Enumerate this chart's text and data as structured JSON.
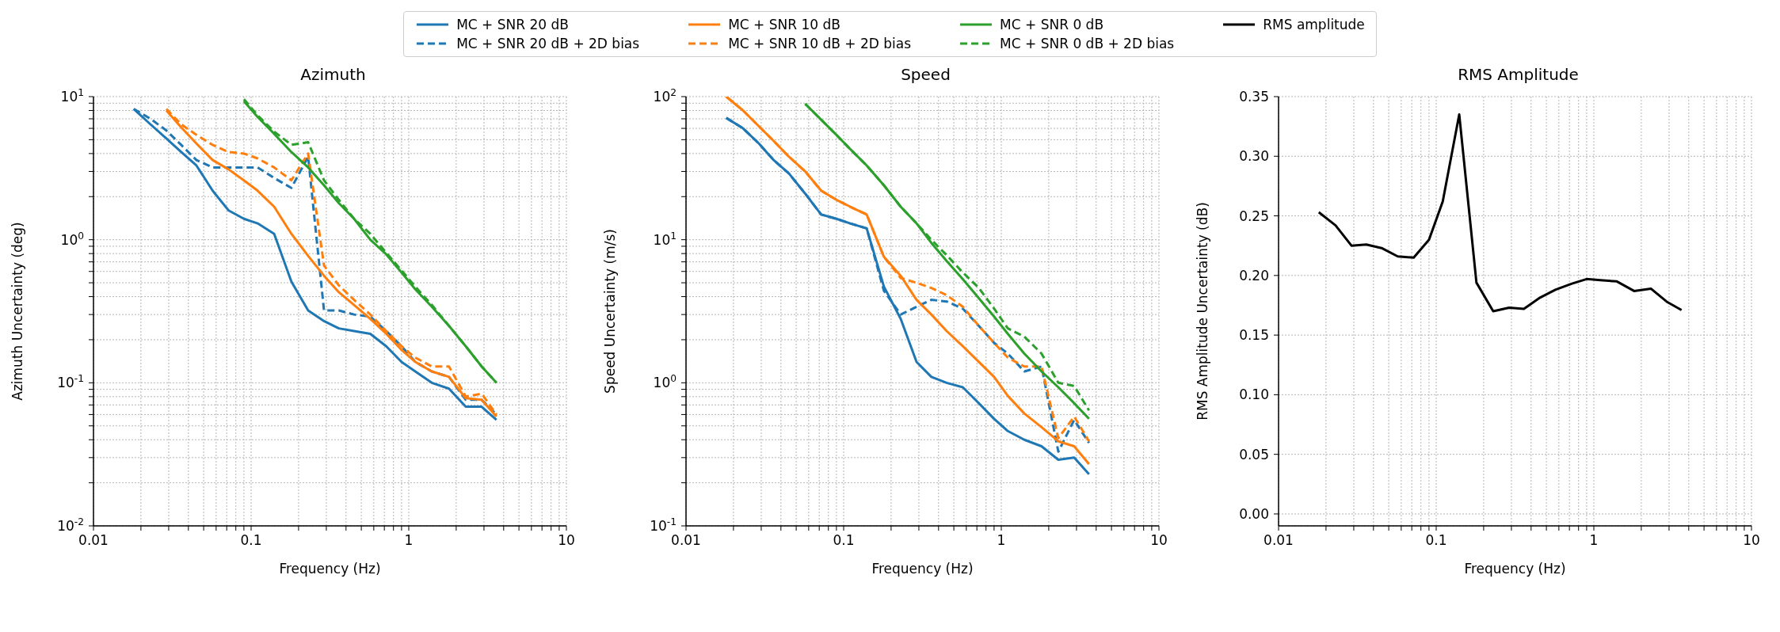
{
  "chart_data": [
    {
      "type": "line",
      "title": "Azimuth",
      "xlabel": "Frequency (Hz)",
      "ylabel": "Azimuth Uncertainty (deg)",
      "log": "xy",
      "grid": true,
      "legend": "top",
      "xlim": [
        0.01,
        10
      ],
      "ylim": [
        0.01,
        10
      ],
      "xticks": [
        0.01,
        {
          "value": 0.02,
          "label": null
        },
        {
          "value": 0.03,
          "label": null
        },
        {
          "value": 0.04,
          "label": null
        },
        {
          "value": 0.05,
          "label": null
        },
        {
          "value": 0.06,
          "label": null
        },
        {
          "value": 0.07,
          "label": null
        },
        {
          "value": 0.08,
          "label": null
        },
        {
          "value": 0.09,
          "label": null
        },
        0.1,
        {
          "value": 0.2,
          "label": null
        },
        {
          "value": 0.3,
          "label": null
        },
        {
          "value": 0.4,
          "label": null
        },
        {
          "value": 0.5,
          "label": null
        },
        {
          "value": 0.6,
          "label": null
        },
        {
          "value": 0.7,
          "label": null
        },
        {
          "value": 0.8,
          "label": null
        },
        {
          "value": 0.9,
          "label": null
        },
        1,
        {
          "value": 2,
          "label": null
        },
        {
          "value": 3,
          "label": null
        },
        {
          "value": 4,
          "label": null
        },
        {
          "value": 5,
          "label": null
        },
        {
          "value": 6,
          "label": null
        },
        {
          "value": 7,
          "label": null
        },
        {
          "value": 8,
          "label": null
        },
        {
          "value": 9,
          "label": null
        },
        10
      ],
      "yticks": [
        {
          "value": 0.01,
          "label": "10$^{-2}$"
        },
        {
          "value": 0.02,
          "label": null
        },
        {
          "value": 0.03,
          "label": null
        },
        {
          "value": 0.04,
          "label": null
        },
        {
          "value": 0.05,
          "label": null
        },
        {
          "value": 0.06,
          "label": null
        },
        {
          "value": 0.07,
          "label": null
        },
        {
          "value": 0.08,
          "label": null
        },
        {
          "value": 0.09,
          "label": null
        },
        {
          "value": 0.1,
          "label": "10$^{-1}$"
        },
        {
          "value": 0.2,
          "label": null
        },
        {
          "value": 0.3,
          "label": null
        },
        {
          "value": 0.4,
          "label": null
        },
        {
          "value": 0.5,
          "label": null
        },
        {
          "value": 0.6,
          "label": null
        },
        {
          "value": 0.7,
          "label": null
        },
        {
          "value": 0.8,
          "label": null
        },
        {
          "value": 0.9,
          "label": null
        },
        {
          "value": 1,
          "label": "10$^{0}$"
        },
        {
          "value": 2,
          "label": null
        },
        {
          "value": 3,
          "label": null
        },
        {
          "value": 4,
          "label": null
        },
        {
          "value": 5,
          "label": null
        },
        {
          "value": 6,
          "label": null
        },
        {
          "value": 7,
          "label": null
        },
        {
          "value": 8,
          "label": null
        },
        {
          "value": 9,
          "label": null
        },
        {
          "value": 10,
          "label": "10$^{1}$"
        }
      ],
      "x": [
        0.018,
        0.023,
        0.029,
        0.036,
        0.045,
        0.057,
        0.072,
        0.09,
        0.11,
        0.14,
        0.18,
        0.23,
        0.29,
        0.36,
        0.45,
        0.57,
        0.72,
        0.9,
        1.1,
        1.4,
        1.8,
        2.3,
        2.9,
        3.6
      ],
      "series": [
        {
          "name": "MC + SNR 20 dB",
          "color": "#1f77b4",
          "line_style": "solid",
          "values": [
            8.2,
            6.4,
            5.1,
            4.1,
            3.3,
            2.2,
            1.6,
            1.4,
            1.3,
            1.1,
            0.51,
            0.32,
            0.27,
            0.24,
            0.23,
            0.22,
            0.18,
            0.14,
            0.12,
            0.1,
            0.091,
            0.068,
            0.068,
            0.055
          ]
        },
        {
          "name": "MC + SNR 20 dB + 2D bias",
          "color": "#1f77b4",
          "line_style": "dashed",
          "values": [
            8.2,
            7.0,
            5.8,
            4.6,
            3.6,
            3.2,
            3.2,
            3.2,
            3.2,
            2.7,
            2.3,
            3.8,
            0.32,
            0.32,
            0.3,
            0.29,
            0.23,
            0.18,
            0.14,
            0.12,
            0.11,
            0.076,
            0.076,
            0.06
          ]
        },
        {
          "name": "MC + SNR 10 dB",
          "color": "#ff7f0e",
          "line_style": "solid",
          "values": [
            null,
            null,
            8.0,
            6.1,
            4.7,
            3.6,
            3.1,
            2.6,
            2.2,
            1.7,
            1.1,
            0.77,
            0.56,
            0.43,
            0.35,
            0.28,
            0.22,
            0.17,
            0.14,
            0.12,
            0.11,
            0.078,
            0.076,
            0.058
          ]
        },
        {
          "name": "MC + SNR 10 dB + 2D bias",
          "color": "#ff7f0e",
          "line_style": "dashed",
          "values": [
            null,
            null,
            8.2,
            6.4,
            5.4,
            4.6,
            4.1,
            4.0,
            3.7,
            3.2,
            2.6,
            4.0,
            0.66,
            0.48,
            0.38,
            0.3,
            0.23,
            0.18,
            0.15,
            0.13,
            0.13,
            0.08,
            0.084,
            0.06
          ]
        },
        {
          "name": "MC + SNR 0 dB",
          "color": "#2ca02c",
          "line_style": "solid",
          "values": [
            null,
            null,
            null,
            null,
            null,
            null,
            null,
            9.3,
            7.2,
            5.5,
            4.1,
            3.2,
            2.4,
            1.8,
            1.4,
            1.0,
            0.79,
            0.59,
            0.45,
            0.34,
            0.25,
            0.18,
            0.13,
            0.1
          ]
        },
        {
          "name": "MC + SNR 0 dB + 2D bias",
          "color": "#2ca02c",
          "line_style": "dashed",
          "values": [
            null,
            null,
            null,
            null,
            null,
            null,
            null,
            9.6,
            7.4,
            5.7,
            4.6,
            4.8,
            2.6,
            1.9,
            1.4,
            1.1,
            0.81,
            0.61,
            0.47,
            0.35,
            0.25,
            0.18,
            0.13,
            0.1
          ]
        }
      ]
    },
    {
      "type": "line",
      "title": "Speed",
      "xlabel": "Frequency (Hz)",
      "ylabel": "Speed Uncertainty (m/s)",
      "log": "xy",
      "grid": true,
      "xlim": [
        0.01,
        10
      ],
      "ylim": [
        0.1,
        100
      ],
      "xticks": [
        0.01,
        {
          "value": 0.02,
          "label": null
        },
        {
          "value": 0.03,
          "label": null
        },
        {
          "value": 0.04,
          "label": null
        },
        {
          "value": 0.05,
          "label": null
        },
        {
          "value": 0.06,
          "label": null
        },
        {
          "value": 0.07,
          "label": null
        },
        {
          "value": 0.08,
          "label": null
        },
        {
          "value": 0.09,
          "label": null
        },
        0.1,
        {
          "value": 0.2,
          "label": null
        },
        {
          "value": 0.3,
          "label": null
        },
        {
          "value": 0.4,
          "label": null
        },
        {
          "value": 0.5,
          "label": null
        },
        {
          "value": 0.6,
          "label": null
        },
        {
          "value": 0.7,
          "label": null
        },
        {
          "value": 0.8,
          "label": null
        },
        {
          "value": 0.9,
          "label": null
        },
        1,
        {
          "value": 2,
          "label": null
        },
        {
          "value": 3,
          "label": null
        },
        {
          "value": 4,
          "label": null
        },
        {
          "value": 5,
          "label": null
        },
        {
          "value": 6,
          "label": null
        },
        {
          "value": 7,
          "label": null
        },
        {
          "value": 8,
          "label": null
        },
        {
          "value": 9,
          "label": null
        },
        10
      ],
      "yticks": [
        {
          "value": 0.1,
          "label": "10$^{-1}$"
        },
        {
          "value": 0.2,
          "label": null
        },
        {
          "value": 0.3,
          "label": null
        },
        {
          "value": 0.4,
          "label": null
        },
        {
          "value": 0.5,
          "label": null
        },
        {
          "value": 0.6,
          "label": null
        },
        {
          "value": 0.7,
          "label": null
        },
        {
          "value": 0.8,
          "label": null
        },
        {
          "value": 0.9,
          "label": null
        },
        {
          "value": 1,
          "label": "10$^{0}$"
        },
        {
          "value": 2,
          "label": null
        },
        {
          "value": 3,
          "label": null
        },
        {
          "value": 4,
          "label": null
        },
        {
          "value": 5,
          "label": null
        },
        {
          "value": 6,
          "label": null
        },
        {
          "value": 7,
          "label": null
        },
        {
          "value": 8,
          "label": null
        },
        {
          "value": 9,
          "label": null
        },
        {
          "value": 10,
          "label": "10$^{1}$"
        },
        {
          "value": 20,
          "label": null
        },
        {
          "value": 30,
          "label": null
        },
        {
          "value": 40,
          "label": null
        },
        {
          "value": 50,
          "label": null
        },
        {
          "value": 60,
          "label": null
        },
        {
          "value": 70,
          "label": null
        },
        {
          "value": 80,
          "label": null
        },
        {
          "value": 90,
          "label": null
        },
        {
          "value": 100,
          "label": "10$^{2}$"
        }
      ],
      "x": [
        0.018,
        0.023,
        0.029,
        0.036,
        0.045,
        0.057,
        0.072,
        0.09,
        0.11,
        0.14,
        0.18,
        0.23,
        0.29,
        0.36,
        0.45,
        0.57,
        0.72,
        0.9,
        1.1,
        1.4,
        1.8,
        2.3,
        2.9,
        3.6
      ],
      "series": [
        {
          "color": "#1f77b4",
          "line_style": "solid",
          "values": [
            71,
            60,
            47,
            36,
            29,
            21,
            15,
            14,
            13,
            12,
            4.7,
            2.8,
            1.4,
            1.1,
            1.0,
            0.93,
            0.72,
            0.56,
            0.46,
            0.4,
            0.36,
            0.29,
            0.3,
            0.23
          ]
        },
        {
          "color": "#1f77b4",
          "line_style": "dashed",
          "values": [
            71,
            60,
            47,
            36,
            29,
            21,
            15,
            14,
            13,
            12,
            4.4,
            3.0,
            3.4,
            3.8,
            3.7,
            3.3,
            2.5,
            1.9,
            1.6,
            1.2,
            1.3,
            0.33,
            0.55,
            0.38
          ]
        },
        {
          "color": "#ff7f0e",
          "line_style": "solid",
          "values": [
            100,
            80,
            62,
            49,
            38,
            30,
            22,
            19,
            17,
            15,
            7.6,
            5.6,
            3.8,
            3.0,
            2.3,
            1.8,
            1.4,
            1.1,
            0.81,
            0.61,
            0.49,
            0.39,
            0.36,
            0.27
          ]
        },
        {
          "color": "#ff7f0e",
          "line_style": "dashed",
          "values": [
            100,
            80,
            62,
            49,
            38,
            30,
            22,
            19,
            17,
            15,
            7.6,
            5.4,
            5.0,
            4.6,
            4.1,
            3.4,
            2.5,
            1.9,
            1.5,
            1.3,
            1.3,
            0.41,
            0.58,
            0.39
          ]
        },
        {
          "color": "#2ca02c",
          "line_style": "solid",
          "values": [
            null,
            null,
            null,
            null,
            null,
            89,
            69,
            54,
            43,
            33,
            24,
            17,
            13,
            9.5,
            7.1,
            5.3,
            3.9,
            2.9,
            2.2,
            1.6,
            1.2,
            0.93,
            0.72,
            0.56
          ]
        },
        {
          "color": "#2ca02c",
          "line_style": "dashed",
          "values": [
            null,
            null,
            null,
            null,
            null,
            89,
            69,
            54,
            43,
            33,
            24,
            17,
            13,
            10,
            7.8,
            5.9,
            4.6,
            3.3,
            2.4,
            2.1,
            1.6,
            1.0,
            0.95,
            0.64
          ]
        }
      ]
    },
    {
      "type": "line",
      "title": "RMS Amplitude",
      "xlabel": "Frequency (Hz)",
      "ylabel": "RMS Amplitude Uncertainty (dB)",
      "log": "x",
      "grid": true,
      "legend": "top",
      "xlim": [
        0.01,
        10
      ],
      "ylim": [
        -0.01,
        0.35
      ],
      "xticks": [
        0.01,
        {
          "value": 0.02,
          "label": null
        },
        {
          "value": 0.03,
          "label": null
        },
        {
          "value": 0.04,
          "label": null
        },
        {
          "value": 0.05,
          "label": null
        },
        {
          "value": 0.06,
          "label": null
        },
        {
          "value": 0.07,
          "label": null
        },
        {
          "value": 0.08,
          "label": null
        },
        {
          "value": 0.09,
          "label": null
        },
        0.1,
        {
          "value": 0.2,
          "label": null
        },
        {
          "value": 0.3,
          "label": null
        },
        {
          "value": 0.4,
          "label": null
        },
        {
          "value": 0.5,
          "label": null
        },
        {
          "value": 0.6,
          "label": null
        },
        {
          "value": 0.7,
          "label": null
        },
        {
          "value": 0.8,
          "label": null
        },
        {
          "value": 0.9,
          "label": null
        },
        1,
        {
          "value": 2,
          "label": null
        },
        {
          "value": 3,
          "label": null
        },
        {
          "value": 4,
          "label": null
        },
        {
          "value": 5,
          "label": null
        },
        {
          "value": 6,
          "label": null
        },
        {
          "value": 7,
          "label": null
        },
        {
          "value": 8,
          "label": null
        },
        {
          "value": 9,
          "label": null
        },
        10
      ],
      "yticks": [
        {
          "value": 0,
          "label": "0.00"
        },
        0.05,
        {
          "value": 0.1,
          "label": "0.10"
        },
        0.15,
        {
          "value": 0.2,
          "label": "0.20"
        },
        0.25,
        {
          "value": 0.3,
          "label": "0.30"
        },
        0.35
      ],
      "x": [
        0.018,
        0.023,
        0.029,
        0.036,
        0.045,
        0.057,
        0.072,
        0.09,
        0.11,
        0.14,
        0.18,
        0.23,
        0.29,
        0.36,
        0.45,
        0.57,
        0.72,
        0.9,
        1.1,
        1.4,
        1.8,
        2.3,
        2.9,
        3.6
      ],
      "series": [
        {
          "name": "RMS amplitude",
          "color": "#000000",
          "line_style": "solid",
          "values": [
            0.253,
            0.242,
            0.225,
            0.226,
            0.223,
            0.216,
            0.215,
            0.23,
            0.262,
            0.335,
            0.194,
            0.17,
            0.173,
            0.172,
            0.181,
            0.188,
            0.193,
            0.197,
            0.196,
            0.195,
            0.187,
            0.189,
            0.178,
            0.171
          ]
        }
      ]
    }
  ]
}
